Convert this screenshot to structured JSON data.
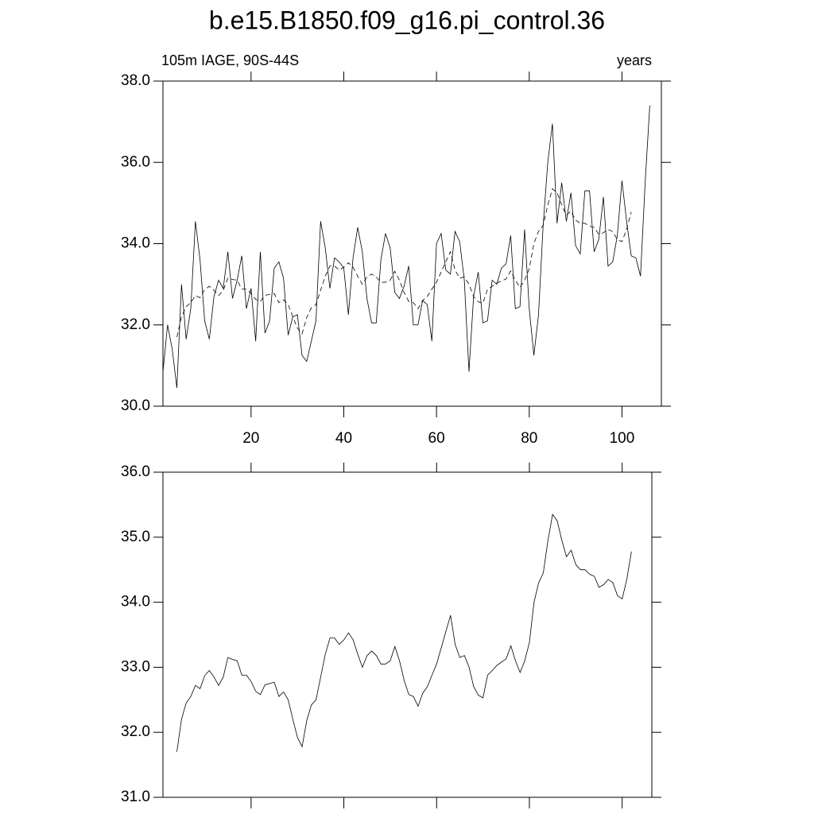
{
  "chart_data": [
    {
      "type": "line",
      "title": "b.e15.B1850.f09_g16.pi_control.36",
      "left_label": "105m IAGE, 90S-44S",
      "right_label": "years",
      "xlim": [
        1,
        108.5
      ],
      "ylim": [
        30,
        38
      ],
      "xticks": [
        20,
        40,
        60,
        80,
        100
      ],
      "yticks": [
        {
          "value": 30,
          "label": "30.0"
        },
        {
          "value": 32,
          "label": "32.0"
        },
        {
          "value": 34,
          "label": "34.0"
        },
        {
          "value": 36,
          "label": "36.0"
        },
        {
          "value": 38,
          "label": "38.0"
        }
      ],
      "series": [
        {
          "color": "#000000",
          "dash": "solid",
          "x": [
            1,
            2,
            3,
            4,
            5,
            6,
            7,
            8,
            9,
            10,
            11,
            12,
            13,
            14,
            15,
            16,
            17,
            18,
            19,
            20,
            21,
            22,
            23,
            24,
            25,
            26,
            27,
            28,
            29,
            30,
            31,
            32,
            33,
            34,
            35,
            36,
            37,
            38,
            39,
            40,
            41,
            42,
            43,
            44,
            45,
            46,
            47,
            48,
            49,
            50,
            51,
            52,
            53,
            54,
            55,
            56,
            57,
            58,
            59,
            60,
            61,
            62,
            63,
            64,
            65,
            66,
            67,
            68,
            69,
            70,
            71,
            72,
            73,
            74,
            75,
            76,
            77,
            78,
            79,
            80,
            81,
            82,
            83,
            84,
            85,
            86,
            87,
            88,
            89,
            90,
            91,
            92,
            93,
            94,
            95,
            96,
            97,
            98,
            99,
            100,
            101,
            102,
            103,
            104,
            105,
            106
          ],
          "values": [
            30.85,
            32.0,
            31.4,
            30.45,
            33.0,
            31.65,
            32.4,
            34.55,
            33.6,
            32.1,
            31.65,
            32.7,
            33.1,
            32.9,
            33.8,
            32.65,
            33.1,
            33.7,
            32.4,
            32.9,
            31.6,
            33.8,
            31.8,
            32.1,
            33.4,
            33.55,
            33.15,
            31.75,
            32.2,
            32.25,
            31.25,
            31.1,
            31.6,
            32.1,
            34.55,
            33.9,
            32.9,
            33.65,
            33.55,
            33.4,
            32.25,
            33.65,
            34.4,
            33.8,
            32.65,
            32.05,
            32.05,
            33.6,
            34.25,
            33.9,
            32.8,
            32.65,
            32.95,
            33.45,
            32.0,
            32.0,
            32.6,
            32.5,
            31.6,
            34.0,
            34.25,
            33.35,
            33.25,
            34.3,
            34.05,
            33.1,
            30.85,
            32.7,
            33.3,
            32.05,
            32.1,
            33.1,
            33.0,
            33.4,
            33.5,
            34.2,
            32.4,
            32.45,
            34.35,
            32.4,
            31.25,
            32.25,
            34.45,
            36.0,
            36.95,
            34.5,
            35.5,
            34.55,
            35.25,
            33.95,
            33.75,
            35.3,
            35.3,
            33.8,
            34.1,
            35.15,
            33.45,
            33.55,
            34.2,
            35.55,
            34.55,
            33.7,
            33.65,
            33.2,
            35.5,
            37.4
          ]
        },
        {
          "color": "#000000",
          "dash": "dashed",
          "x": [
            4,
            5,
            6,
            7,
            8,
            9,
            10,
            11,
            12,
            13,
            14,
            15,
            16,
            17,
            18,
            19,
            20,
            21,
            22,
            23,
            24,
            25,
            26,
            27,
            28,
            29,
            30,
            31,
            32,
            33,
            34,
            35,
            36,
            37,
            38,
            39,
            40,
            41,
            42,
            43,
            44,
            45,
            46,
            47,
            48,
            49,
            50,
            51,
            52,
            53,
            54,
            55,
            56,
            57,
            58,
            59,
            60,
            61,
            62,
            63,
            64,
            65,
            66,
            67,
            68,
            69,
            70,
            71,
            72,
            73,
            74,
            75,
            76,
            77,
            78,
            79,
            80,
            81,
            82,
            83,
            84,
            85,
            86,
            87,
            88,
            89,
            90,
            91,
            92,
            93,
            94,
            95,
            96,
            97,
            98,
            99,
            100,
            101,
            102
          ],
          "values": [
            31.7,
            32.2,
            32.45,
            32.55,
            32.72,
            32.67,
            32.87,
            32.95,
            32.85,
            32.72,
            32.85,
            33.15,
            33.12,
            33.1,
            32.88,
            32.88,
            32.78,
            32.63,
            32.58,
            32.73,
            32.75,
            32.77,
            32.55,
            32.62,
            32.5,
            32.2,
            31.92,
            31.78,
            32.18,
            32.42,
            32.5,
            32.85,
            33.2,
            33.45,
            33.45,
            33.35,
            33.42,
            33.53,
            33.42,
            33.2,
            33.0,
            33.18,
            33.25,
            33.18,
            33.05,
            33.05,
            33.1,
            33.32,
            33.1,
            32.8,
            32.58,
            32.55,
            32.4,
            32.6,
            32.7,
            32.88,
            33.05,
            33.3,
            33.55,
            33.8,
            33.35,
            33.15,
            33.18,
            33.0,
            32.7,
            32.57,
            32.53,
            32.88,
            32.95,
            33.03,
            33.08,
            33.13,
            33.33,
            33.1,
            32.92,
            33.1,
            33.38,
            34.0,
            34.3,
            34.45,
            34.95,
            35.35,
            35.25,
            34.95,
            34.7,
            34.8,
            34.58,
            34.5,
            34.5,
            34.43,
            34.4,
            34.23,
            34.27,
            34.35,
            34.3,
            34.1,
            34.05,
            34.35,
            34.78
          ]
        }
      ]
    },
    {
      "type": "line",
      "xlim": [
        1,
        106.4
      ],
      "ylim": [
        31,
        36
      ],
      "xticks": [
        20,
        40,
        60,
        80,
        100
      ],
      "yticks": [
        {
          "value": 31,
          "label": "31.0"
        },
        {
          "value": 32,
          "label": "32.0"
        },
        {
          "value": 33,
          "label": "33.0"
        },
        {
          "value": 34,
          "label": "34.0"
        },
        {
          "value": 35,
          "label": "35.0"
        },
        {
          "value": 36,
          "label": "36.0"
        }
      ],
      "series": [
        {
          "color": "#000000",
          "dash": "solid",
          "x": [
            4,
            5,
            6,
            7,
            8,
            9,
            10,
            11,
            12,
            13,
            14,
            15,
            16,
            17,
            18,
            19,
            20,
            21,
            22,
            23,
            24,
            25,
            26,
            27,
            28,
            29,
            30,
            31,
            32,
            33,
            34,
            35,
            36,
            37,
            38,
            39,
            40,
            41,
            42,
            43,
            44,
            45,
            46,
            47,
            48,
            49,
            50,
            51,
            52,
            53,
            54,
            55,
            56,
            57,
            58,
            59,
            60,
            61,
            62,
            63,
            64,
            65,
            66,
            67,
            68,
            69,
            70,
            71,
            72,
            73,
            74,
            75,
            76,
            77,
            78,
            79,
            80,
            81,
            82,
            83,
            84,
            85,
            86,
            87,
            88,
            89,
            90,
            91,
            92,
            93,
            94,
            95,
            96,
            97,
            98,
            99,
            100,
            101,
            102
          ],
          "values": [
            31.7,
            32.2,
            32.45,
            32.55,
            32.72,
            32.67,
            32.87,
            32.95,
            32.85,
            32.72,
            32.85,
            33.15,
            33.12,
            33.1,
            32.88,
            32.88,
            32.78,
            32.63,
            32.58,
            32.73,
            32.75,
            32.77,
            32.55,
            32.62,
            32.5,
            32.2,
            31.92,
            31.78,
            32.18,
            32.42,
            32.5,
            32.85,
            33.2,
            33.45,
            33.45,
            33.35,
            33.42,
            33.53,
            33.42,
            33.2,
            33.0,
            33.18,
            33.25,
            33.18,
            33.05,
            33.05,
            33.1,
            33.32,
            33.1,
            32.8,
            32.58,
            32.55,
            32.4,
            32.6,
            32.7,
            32.88,
            33.05,
            33.3,
            33.55,
            33.8,
            33.35,
            33.15,
            33.18,
            33.0,
            32.7,
            32.57,
            32.53,
            32.88,
            32.95,
            33.03,
            33.08,
            33.13,
            33.33,
            33.1,
            32.92,
            33.1,
            33.38,
            34.0,
            34.3,
            34.45,
            34.95,
            35.35,
            35.25,
            34.95,
            34.7,
            34.8,
            34.58,
            34.5,
            34.5,
            34.43,
            34.4,
            34.23,
            34.27,
            34.35,
            34.3,
            34.1,
            34.05,
            34.35,
            34.78
          ]
        }
      ]
    }
  ]
}
